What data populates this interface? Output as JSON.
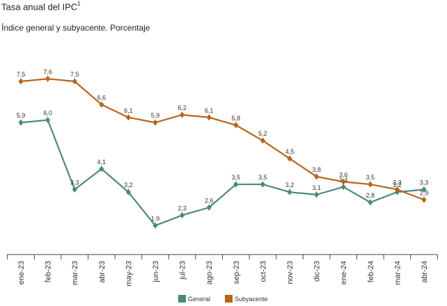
{
  "title": "Tasa anual del IPC",
  "title_sup": "1",
  "subtitle": "Índice general y subyacente. Porcentaje",
  "chart_data": {
    "type": "line",
    "categories": [
      "ene-23",
      "feb-23",
      "mar-23",
      "abr-23",
      "may-23",
      "jun-23",
      "jul-23",
      "ago-23",
      "sep-23",
      "oct-23",
      "nov-23",
      "dic-23",
      "ene-24",
      "feb-24",
      "mar-24",
      "abr-24"
    ],
    "series": [
      {
        "name": "General",
        "color": "#4a8a7a",
        "values": [
          5.9,
          6.0,
          3.3,
          4.1,
          3.2,
          1.9,
          2.3,
          2.6,
          3.5,
          3.5,
          3.2,
          3.1,
          3.4,
          2.8,
          3.2,
          3.3
        ],
        "labels": [
          "5,9",
          "6,0",
          "3,3",
          "4,1",
          "3,2",
          "1,9",
          "2,3",
          "2,6",
          "3,5",
          "3,5",
          "3,2",
          "3,1",
          "3,4",
          "2,8",
          "3,2",
          "3,3"
        ]
      },
      {
        "name": "Subyacente",
        "color": "#b8641a",
        "values": [
          7.5,
          7.6,
          7.5,
          6.6,
          6.1,
          5.9,
          6.2,
          6.1,
          5.8,
          5.2,
          4.5,
          3.8,
          3.6,
          3.5,
          3.3,
          2.9
        ],
        "labels": [
          "7,5",
          "7,6",
          "7,5",
          "6,6",
          "6,1",
          "5,9",
          "6,2",
          "6,1",
          "5,8",
          "5,2",
          "4,5",
          "3,8",
          "3,6",
          "3,5",
          "3,3",
          "2,9"
        ]
      }
    ],
    "ylim": [
      0.8,
      8.5
    ],
    "grid": false,
    "legend_position": "bottom-center"
  }
}
